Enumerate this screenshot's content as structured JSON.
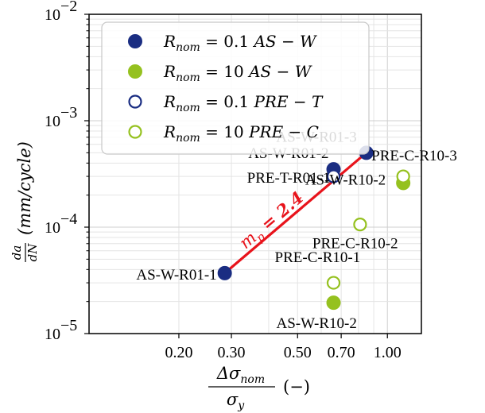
{
  "chart_data": {
    "type": "scatter",
    "x_scale": "log",
    "y_scale": "log",
    "xlim": [
      0.1,
      1.3
    ],
    "ylim": [
      1e-05,
      0.01
    ],
    "grid": true,
    "legend_position": "top-left",
    "x_ticks": [
      {
        "value": 0.2,
        "label": "0.20"
      },
      {
        "value": 0.3,
        "label": "0.30"
      },
      {
        "value": 0.5,
        "label": "0.50"
      },
      {
        "value": 0.7,
        "label": "0.70"
      },
      {
        "value": 1.0,
        "label": "1.00"
      }
    ],
    "y_ticks": [
      {
        "value": 1e-05,
        "base": "10",
        "exp": "−5"
      },
      {
        "value": 0.0001,
        "base": "10",
        "exp": "−4"
      },
      {
        "value": 0.001,
        "base": "10",
        "exp": "−3"
      },
      {
        "value": 0.01,
        "base": "10",
        "exp": "−2"
      }
    ],
    "ylabel": {
      "frac_num": "da",
      "frac_den": "dN",
      "text": "(mm/cycle)"
    },
    "xlabel": {
      "frac_num": "Δσ",
      "num_sub": "nom",
      "frac_den": "σ",
      "den_sub": "y",
      "text": "(−)"
    },
    "colors": {
      "navy": "#1a2d82",
      "green": "#95c11f",
      "fit": "#e8131b"
    },
    "series": [
      {
        "name": "R_nom = 0.1 AS − W",
        "legend": {
          "sym": "R",
          "sub": "nom",
          "eq": "= 0.1",
          "desc": "AS − W"
        },
        "color": "#1a2d82",
        "filled": true,
        "points": [
          {
            "x": 0.285,
            "y": 3.7e-05,
            "label": "AS-W-R01-1"
          },
          {
            "x": 0.66,
            "y": 0.00035,
            "label": "AS-W-R01-2"
          },
          {
            "x": 0.85,
            "y": 0.0005,
            "label": "AS-W-R01-3"
          }
        ]
      },
      {
        "name": "R_nom = 10 AS − W",
        "legend": {
          "sym": "R",
          "sub": "nom",
          "eq": "= 10",
          "desc": "AS − W"
        },
        "color": "#95c11f",
        "filled": true,
        "points": [
          {
            "x": 1.13,
            "y": 0.00026,
            "label": "AS-W-R10-2"
          },
          {
            "x": 0.66,
            "y": 1.95e-05,
            "label": "AS-W-R10-2"
          }
        ]
      },
      {
        "name": "R_nom = 0.1 PRE − T",
        "legend": {
          "sym": "R",
          "sub": "nom",
          "eq": "= 0.1",
          "desc": "PRE − T"
        },
        "color": "#1a2d82",
        "filled": false,
        "points": [
          {
            "x": 0.66,
            "y": 0.0003,
            "label": "PRE-T-R01-1"
          }
        ]
      },
      {
        "name": "R_nom = 10 PRE − C",
        "legend": {
          "sym": "R",
          "sub": "nom",
          "eq": "= 10",
          "desc": "PRE − C"
        },
        "color": "#95c11f",
        "filled": false,
        "points": [
          {
            "x": 1.13,
            "y": 0.0003,
            "label": "PRE-C-R10-3"
          },
          {
            "x": 0.81,
            "y": 0.000106,
            "label": "PRE-C-R10-2"
          },
          {
            "x": 0.66,
            "y": 3e-05,
            "label": "PRE-C-R10-1"
          }
        ]
      }
    ],
    "fit_line": {
      "x": [
        0.285,
        0.85
      ],
      "y": [
        3.7e-05,
        0.0005
      ],
      "label": {
        "sym": "m",
        "sub": "p",
        "eq": "= 2.4"
      }
    }
  }
}
